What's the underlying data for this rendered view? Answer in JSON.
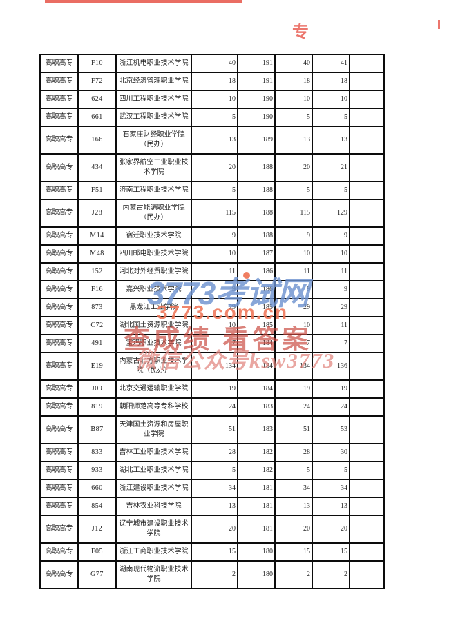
{
  "watermark": {
    "site": "3773考试网",
    "domain": "3773.com.cn",
    "slogan": "查成绩 看答案",
    "wechat": "微信公众号ksw3773",
    "colors": {
      "site_blue": "#6e92d0",
      "domain_coral": "#ee7456",
      "slogan_red": "#c9473c",
      "wechat_pink": "#e0837d"
    }
  },
  "top_marks": {
    "glyph_fragment": "专"
  },
  "table": {
    "category_label": "高职高专",
    "rows": [
      {
        "category": "高职高专",
        "code": "F10",
        "school": "浙江机电职业技术学院",
        "v1": "40",
        "v2": "191",
        "v3": "40",
        "v4": "41",
        "v5": ""
      },
      {
        "category": "高职高专",
        "code": "F72",
        "school": "北京经济管理职业学院",
        "v1": "18",
        "v2": "191",
        "v3": "18",
        "v4": "18",
        "v5": ""
      },
      {
        "category": "高职高专",
        "code": "624",
        "school": "四川工程职业技术学院",
        "v1": "10",
        "v2": "190",
        "v3": "10",
        "v4": "10",
        "v5": ""
      },
      {
        "category": "高职高专",
        "code": "661",
        "school": "武汉工程职业技术学院",
        "v1": "5",
        "v2": "190",
        "v3": "5",
        "v4": "5",
        "v5": ""
      },
      {
        "category": "高职高专",
        "code": "166",
        "school": "石家庄财经职业学院（民办）",
        "v1": "13",
        "v2": "189",
        "v3": "13",
        "v4": "13",
        "v5": ""
      },
      {
        "category": "高职高专",
        "code": "434",
        "school": "张家界航空工业职业技术学院",
        "v1": "20",
        "v2": "188",
        "v3": "20",
        "v4": "21",
        "v5": ""
      },
      {
        "category": "高职高专",
        "code": "F51",
        "school": "济南工程职业技术学院",
        "v1": "5",
        "v2": "188",
        "v3": "5",
        "v4": "5",
        "v5": ""
      },
      {
        "category": "高职高专",
        "code": "J28",
        "school": "内蒙古能源职业学院（民办）",
        "v1": "115",
        "v2": "188",
        "v3": "115",
        "v4": "129",
        "v5": ""
      },
      {
        "category": "高职高专",
        "code": "M14",
        "school": "宿迁职业技术学院",
        "v1": "9",
        "v2": "188",
        "v3": "9",
        "v4": "9",
        "v5": ""
      },
      {
        "category": "高职高专",
        "code": "M48",
        "school": "四川邮电职业技术学院",
        "v1": "10",
        "v2": "187",
        "v3": "10",
        "v4": "10",
        "v5": ""
      },
      {
        "category": "高职高专",
        "code": "152",
        "school": "河北对外经贸职业学院",
        "v1": "11",
        "v2": "186",
        "v3": "11",
        "v4": "11",
        "v5": ""
      },
      {
        "category": "高职高专",
        "code": "F16",
        "school": "嘉兴职业技术学院",
        "v1": "9",
        "v2": "186",
        "v3": "9",
        "v4": "9",
        "v5": ""
      },
      {
        "category": "高职高专",
        "code": "873",
        "school": "黑龙江工业学院",
        "v1": "29",
        "v2": "185",
        "v3": "29",
        "v4": "29",
        "v5": ""
      },
      {
        "category": "高职高专",
        "code": "C72",
        "school": "湖北国土资源职业学院",
        "v1": "10",
        "v2": "185",
        "v3": "10",
        "v4": "11",
        "v5": ""
      },
      {
        "category": "高职高专",
        "code": "491",
        "school": "宝鸡职业技术学院",
        "v1": "7",
        "v2": "184",
        "v3": "7",
        "v4": "7",
        "v5": ""
      },
      {
        "category": "高职高专",
        "code": "E19",
        "school": "内蒙古北方职业技术学院（民办）",
        "v1": "134",
        "v2": "184",
        "v3": "134",
        "v4": "136",
        "v5": ""
      },
      {
        "category": "高职高专",
        "code": "J09",
        "school": "北京交通运输职业学院",
        "v1": "19",
        "v2": "184",
        "v3": "19",
        "v4": "19",
        "v5": ""
      },
      {
        "category": "高职高专",
        "code": "819",
        "school": "朝阳师范高等专科学校",
        "v1": "24",
        "v2": "183",
        "v3": "24",
        "v4": "24",
        "v5": ""
      },
      {
        "category": "高职高专",
        "code": "B87",
        "school": "天津国土资源和房屋职业学院",
        "v1": "51",
        "v2": "183",
        "v3": "51",
        "v4": "53",
        "v5": ""
      },
      {
        "category": "高职高专",
        "code": "833",
        "school": "吉林工业职业技术学院",
        "v1": "28",
        "v2": "182",
        "v3": "28",
        "v4": "30",
        "v5": ""
      },
      {
        "category": "高职高专",
        "code": "933",
        "school": "湖北工业职业技术学院",
        "v1": "5",
        "v2": "182",
        "v3": "5",
        "v4": "5",
        "v5": ""
      },
      {
        "category": "高职高专",
        "code": "660",
        "school": "浙江建设职业技术学院",
        "v1": "34",
        "v2": "181",
        "v3": "34",
        "v4": "34",
        "v5": ""
      },
      {
        "category": "高职高专",
        "code": "854",
        "school": "吉林农业科技学院",
        "v1": "13",
        "v2": "181",
        "v3": "13",
        "v4": "13",
        "v5": ""
      },
      {
        "category": "高职高专",
        "code": "J12",
        "school": "辽宁城市建设职业技术学院",
        "v1": "20",
        "v2": "181",
        "v3": "20",
        "v4": "20",
        "v5": ""
      },
      {
        "category": "高职高专",
        "code": "F05",
        "school": "浙江工商职业技术学院",
        "v1": "15",
        "v2": "180",
        "v3": "15",
        "v4": "15",
        "v5": ""
      },
      {
        "category": "高职高专",
        "code": "G77",
        "school": "湖南现代物流职业技术学院",
        "v1": "2",
        "v2": "180",
        "v3": "2",
        "v4": "2",
        "v5": ""
      }
    ]
  }
}
